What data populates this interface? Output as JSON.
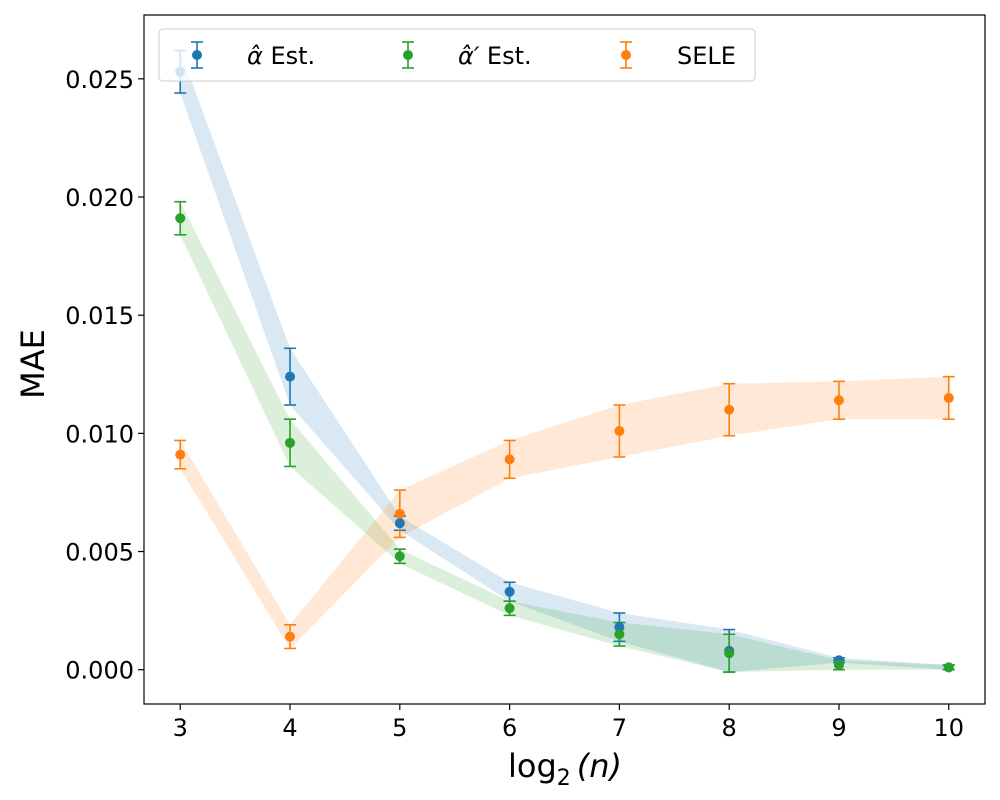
{
  "chart_data": {
    "type": "scatter",
    "title": "",
    "xlabel": "log₂(n)",
    "xlabel_base": "log",
    "xlabel_sub": "2",
    "xlabel_arg": "(n)",
    "ylabel": "MAE",
    "x": [
      3,
      4,
      5,
      6,
      7,
      8,
      9,
      10
    ],
    "xticks": [
      "3",
      "4",
      "5",
      "6",
      "7",
      "8",
      "9",
      "10"
    ],
    "yticks": [
      "0.000",
      "0.005",
      "0.010",
      "0.015",
      "0.020",
      "0.025"
    ],
    "ytick_values": [
      0.0,
      0.005,
      0.01,
      0.015,
      0.02,
      0.025
    ],
    "xlim": [
      2.67,
      10.33
    ],
    "ylim": [
      -0.00145,
      0.0277
    ],
    "legend_position": "top-left",
    "series": [
      {
        "name": "α̂ Est.",
        "label_main": "α̂",
        "label_suffix": " Est.",
        "color": "#1f77b4",
        "fill_color": "#c6dbef",
        "values": [
          0.0253,
          0.0124,
          0.0062,
          0.0033,
          0.0018,
          0.0008,
          0.0004,
          0.0001
        ],
        "errors": [
          0.0009,
          0.0012,
          0.0003,
          0.0004,
          0.0006,
          0.0009,
          0.0001,
          0.0001
        ]
      },
      {
        "name": "α̂′ Est.",
        "label_main": "α̂′",
        "label_suffix": " Est.",
        "color": "#2ca02c",
        "fill_color": "#c7e9c0",
        "values": [
          0.0191,
          0.0096,
          0.0048,
          0.0026,
          0.0015,
          0.0007,
          0.0002,
          0.0001
        ],
        "errors": [
          0.0007,
          0.001,
          0.0003,
          0.0003,
          0.0005,
          0.0008,
          0.0002,
          0.0001
        ]
      },
      {
        "name": "SELE",
        "label_main": "SELE",
        "label_suffix": "",
        "color": "#ff7f0e",
        "fill_color": "#fdd9b5",
        "values": [
          0.0091,
          0.0014,
          0.0066,
          0.0089,
          0.0101,
          0.011,
          0.0114,
          0.0115
        ],
        "errors": [
          0.0006,
          0.0005,
          0.001,
          0.0008,
          0.0011,
          0.0011,
          0.0008,
          0.0009
        ]
      }
    ]
  }
}
